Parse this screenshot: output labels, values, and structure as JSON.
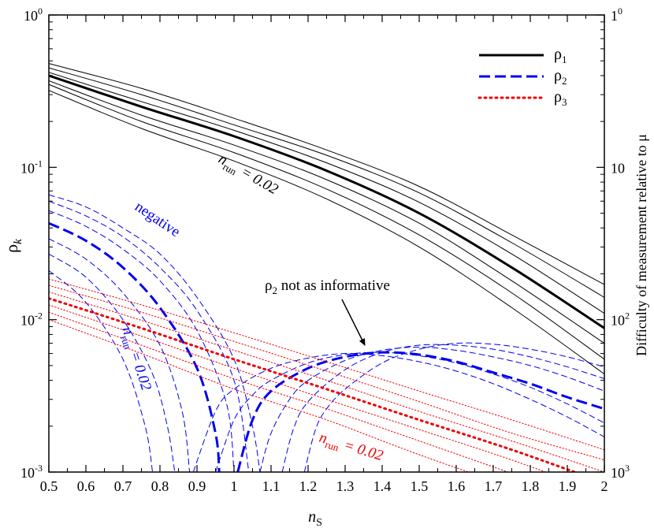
{
  "chart_data": {
    "type": "line",
    "xlabel": "n",
    "xlabel_sub": "S",
    "ylabel": "ρ",
    "ylabel_sub": "k",
    "y2label": "Difficulty of measurement relative to μ",
    "xlim": [
      0.5,
      2.0
    ],
    "ylim": [
      0.001,
      1.0
    ],
    "yscale": "log",
    "grid": false,
    "legend_position": "top-right",
    "x_ticks": [
      "0.5",
      "0.6",
      "0.7",
      "0.8",
      "0.9",
      "1",
      "1.1",
      "1.2",
      "1.3",
      "1.4",
      "1.5",
      "1.6",
      "1.7",
      "1.8",
      "1.9",
      "2"
    ],
    "y_ticks": [
      {
        "base": "10",
        "exp": "0"
      },
      {
        "base": "10",
        "exp": "-1"
      },
      {
        "base": "10",
        "exp": "-2"
      },
      {
        "base": "10",
        "exp": "-3"
      }
    ],
    "y2_ticks": [
      {
        "base": "1",
        "exp": "0"
      },
      {
        "base": "10",
        "exp": ""
      },
      {
        "base": "10",
        "exp": "2"
      },
      {
        "base": "10",
        "exp": "3"
      }
    ],
    "legend": [
      {
        "label": "ρ",
        "sub": "1",
        "color": "#000000",
        "style": "solid"
      },
      {
        "label": "ρ",
        "sub": "2",
        "color": "#0000ee",
        "style": "dashed"
      },
      {
        "label": "ρ",
        "sub": "3",
        "color": "#ee0000",
        "style": "dotted"
      }
    ],
    "annotations": {
      "rho1_run": {
        "n": "n",
        "sub": "run",
        "rest": "= 0.02"
      },
      "negative": "negative",
      "rho2_run": {
        "n": "n",
        "sub": "run",
        "rest": "= 0.02"
      },
      "rho3_run": {
        "n": "n",
        "sub": "run",
        "rest": "= 0.02"
      },
      "rho2_note": {
        "rho": "ρ",
        "sub": "2",
        "rest": " not as informative"
      }
    },
    "series": [
      {
        "group": "rho1",
        "main": true,
        "x": [
          0.5,
          0.75,
          1.0,
          1.25,
          1.5,
          1.75,
          2.0
        ],
        "y": [
          0.4,
          0.25,
          0.16,
          0.095,
          0.05,
          0.022,
          0.0088
        ]
      },
      {
        "group": "rho1",
        "main": false,
        "x": [
          0.5,
          0.75,
          1.0,
          1.25,
          1.5,
          1.75,
          2.0
        ],
        "y": [
          0.48,
          0.33,
          0.21,
          0.13,
          0.075,
          0.036,
          0.017
        ]
      },
      {
        "group": "rho1",
        "main": false,
        "x": [
          0.5,
          0.75,
          1.0,
          1.25,
          1.5,
          1.75,
          2.0
        ],
        "y": [
          0.45,
          0.3,
          0.19,
          0.12,
          0.068,
          0.032,
          0.014
        ]
      },
      {
        "group": "rho1",
        "main": false,
        "x": [
          0.5,
          0.75,
          1.0,
          1.25,
          1.5,
          1.75,
          2.0
        ],
        "y": [
          0.42,
          0.27,
          0.175,
          0.107,
          0.059,
          0.027,
          0.011
        ]
      },
      {
        "group": "rho1",
        "main": false,
        "x": [
          0.5,
          0.75,
          1.0,
          1.25,
          1.5,
          1.75,
          2.0
        ],
        "y": [
          0.37,
          0.22,
          0.14,
          0.083,
          0.043,
          0.018,
          0.007
        ]
      },
      {
        "group": "rho1",
        "main": false,
        "x": [
          0.5,
          0.75,
          1.0,
          1.25,
          1.5,
          1.75,
          2.0
        ],
        "y": [
          0.35,
          0.2,
          0.125,
          0.072,
          0.036,
          0.015,
          0.0055
        ]
      },
      {
        "group": "rho1",
        "main": false,
        "x": [
          0.5,
          0.75,
          1.0,
          1.25,
          1.5,
          1.75,
          2.0
        ],
        "y": [
          0.32,
          0.18,
          0.11,
          0.062,
          0.03,
          0.012,
          0.0044
        ]
      },
      {
        "group": "rho2",
        "main": true,
        "x": [
          0.5,
          0.6,
          0.7,
          0.8,
          0.9,
          0.95,
          0.96
        ],
        "y": [
          0.043,
          0.033,
          0.022,
          0.012,
          0.0048,
          0.0018,
          0.001
        ]
      },
      {
        "group": "rho2",
        "main": false,
        "x": [
          0.5,
          0.6,
          0.7,
          0.8,
          0.9,
          1.0,
          1.05,
          1.07
        ],
        "y": [
          0.066,
          0.055,
          0.04,
          0.027,
          0.014,
          0.0055,
          0.002,
          0.001
        ]
      },
      {
        "group": "rho2",
        "main": false,
        "x": [
          0.5,
          0.6,
          0.7,
          0.8,
          0.9,
          1.0,
          1.04
        ],
        "y": [
          0.06,
          0.048,
          0.035,
          0.022,
          0.0115,
          0.004,
          0.001
        ]
      },
      {
        "group": "rho2",
        "main": false,
        "x": [
          0.5,
          0.6,
          0.7,
          0.8,
          0.9,
          0.98,
          1.0
        ],
        "y": [
          0.052,
          0.041,
          0.029,
          0.018,
          0.0085,
          0.0028,
          0.001
        ]
      },
      {
        "group": "rho2",
        "main": false,
        "x": [
          0.5,
          0.6,
          0.7,
          0.8,
          0.86,
          0.88
        ],
        "y": [
          0.034,
          0.025,
          0.015,
          0.0068,
          0.0025,
          0.001
        ]
      },
      {
        "group": "rho2",
        "main": false,
        "x": [
          0.5,
          0.6,
          0.7,
          0.78,
          0.82,
          0.84
        ],
        "y": [
          0.027,
          0.019,
          0.01,
          0.0044,
          0.002,
          0.001
        ]
      },
      {
        "group": "rho2",
        "main": false,
        "x": [
          0.5,
          0.6,
          0.7,
          0.76,
          0.78
        ],
        "y": [
          0.021,
          0.013,
          0.0055,
          0.002,
          0.001
        ]
      },
      {
        "group": "rho2",
        "main": true,
        "x": [
          1.01,
          1.05,
          1.1,
          1.2,
          1.3,
          1.4,
          1.5,
          1.6,
          1.7,
          1.8,
          1.9,
          2.0
        ],
        "y": [
          0.001,
          0.0022,
          0.0034,
          0.0048,
          0.0057,
          0.0061,
          0.0059,
          0.0053,
          0.0045,
          0.0038,
          0.0031,
          0.0026
        ]
      },
      {
        "group": "rho2",
        "main": false,
        "x": [
          0.89,
          0.95,
          1.0,
          1.1,
          1.2,
          1.3,
          1.4,
          1.5,
          1.6,
          1.7,
          1.8,
          1.9,
          2.0
        ],
        "y": [
          0.001,
          0.0025,
          0.0035,
          0.0048,
          0.0056,
          0.006,
          0.0058,
          0.0053,
          0.0046,
          0.0038,
          0.003,
          0.0023,
          0.0017
        ]
      },
      {
        "group": "rho2",
        "main": false,
        "x": [
          0.95,
          1.0,
          1.05,
          1.1,
          1.2,
          1.3,
          1.4,
          1.5,
          1.6,
          1.7,
          1.8,
          1.9,
          2.0
        ],
        "y": [
          0.001,
          0.0022,
          0.0032,
          0.004,
          0.0052,
          0.0059,
          0.0061,
          0.0058,
          0.0052,
          0.0044,
          0.0036,
          0.0028,
          0.0021
        ]
      },
      {
        "group": "rho2",
        "main": false,
        "x": [
          1.07,
          1.1,
          1.15,
          1.2,
          1.3,
          1.4,
          1.5,
          1.6,
          1.7,
          1.8,
          1.9,
          2.0
        ],
        "y": [
          0.001,
          0.0018,
          0.003,
          0.004,
          0.0054,
          0.0063,
          0.0066,
          0.0063,
          0.0057,
          0.005,
          0.0042,
          0.0034
        ]
      },
      {
        "group": "rho2",
        "main": false,
        "x": [
          1.13,
          1.16,
          1.2,
          1.3,
          1.4,
          1.5,
          1.6,
          1.7,
          1.8,
          1.9,
          2.0
        ],
        "y": [
          0.001,
          0.0019,
          0.0029,
          0.0047,
          0.0061,
          0.0068,
          0.0068,
          0.0064,
          0.0057,
          0.0049,
          0.0041
        ]
      },
      {
        "group": "rho2",
        "main": false,
        "x": [
          1.19,
          1.22,
          1.25,
          1.3,
          1.4,
          1.5,
          1.6,
          1.7,
          1.8,
          1.9,
          2.0
        ],
        "y": [
          0.001,
          0.0019,
          0.0026,
          0.0035,
          0.0052,
          0.0064,
          0.007,
          0.0069,
          0.0064,
          0.0057,
          0.0049
        ]
      },
      {
        "group": "rho3",
        "main": true,
        "x": [
          0.5,
          0.75,
          1.0,
          1.25,
          1.5,
          1.75,
          2.0
        ],
        "y": [
          0.0138,
          0.0088,
          0.0055,
          0.0035,
          0.0022,
          0.0014,
          0.00085
        ]
      },
      {
        "group": "rho3",
        "main": false,
        "x": [
          0.5,
          0.75,
          1.0,
          1.25,
          1.5,
          1.75,
          2.0
        ],
        "y": [
          0.0185,
          0.0125,
          0.0082,
          0.0053,
          0.0034,
          0.0022,
          0.0014
        ]
      },
      {
        "group": "rho3",
        "main": false,
        "x": [
          0.5,
          0.75,
          1.0,
          1.25,
          1.5,
          1.75,
          2.0
        ],
        "y": [
          0.0168,
          0.0112,
          0.0072,
          0.0046,
          0.0029,
          0.0018,
          0.0012
        ]
      },
      {
        "group": "rho3",
        "main": false,
        "x": [
          0.5,
          0.75,
          1.0,
          1.25,
          1.5,
          1.75,
          2.0
        ],
        "y": [
          0.0152,
          0.0099,
          0.0063,
          0.004,
          0.0025,
          0.0016,
          0.001
        ]
      },
      {
        "group": "rho3",
        "main": false,
        "x": [
          0.5,
          0.75,
          1.0,
          1.25,
          1.5,
          1.75,
          2.0
        ],
        "y": [
          0.0125,
          0.0078,
          0.0048,
          0.003,
          0.0019,
          0.0012,
          0.00072
        ]
      },
      {
        "group": "rho3",
        "main": false,
        "x": [
          0.5,
          0.75,
          1.0,
          1.25,
          1.5,
          1.75,
          2.0
        ],
        "y": [
          0.0112,
          0.0068,
          0.0041,
          0.0026,
          0.0016,
          0.00098,
          0.0006
        ]
      },
      {
        "group": "rho3",
        "main": false,
        "x": [
          0.5,
          0.75,
          1.0,
          1.25,
          1.5,
          1.75,
          2.0
        ],
        "y": [
          0.01,
          0.006,
          0.0035,
          0.0022,
          0.0013,
          0.0008,
          0.0005
        ]
      }
    ]
  }
}
